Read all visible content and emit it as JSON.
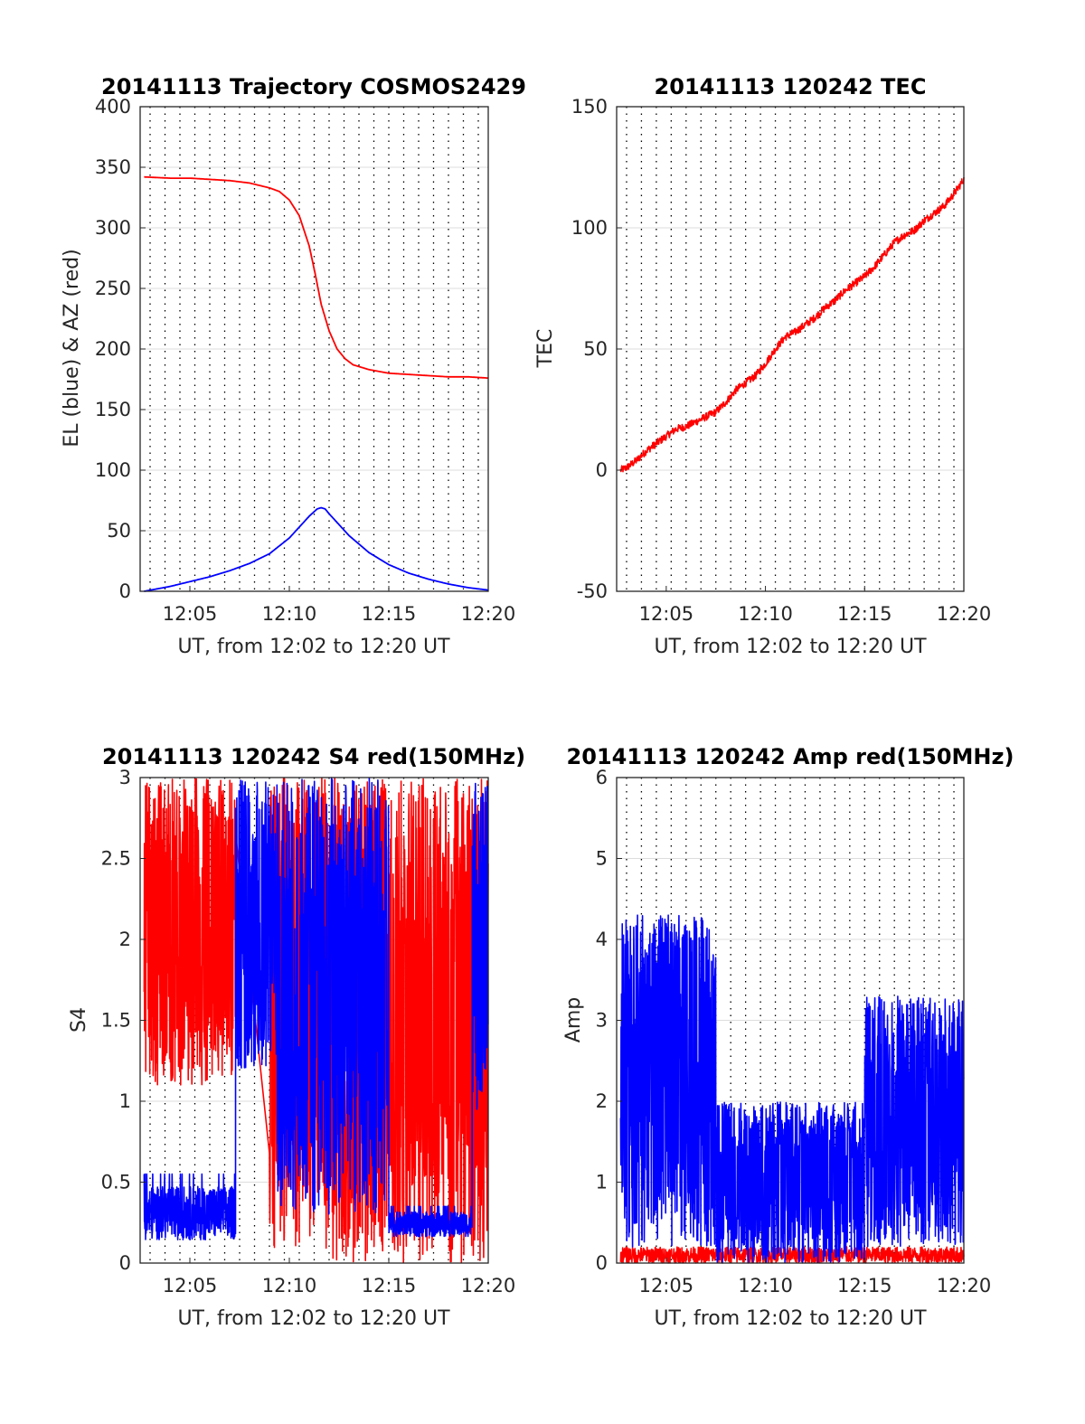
{
  "colors": {
    "red": "#ff0000",
    "blue": "#0000ff",
    "grid_dotted": "#000000",
    "grid_horizontal": "#dddddd"
  },
  "chart_data": [
    {
      "type": "line",
      "title": "20141113 Trajectory COSMOS2429",
      "xlabel": "UT, from 12:02 to 12:20 UT",
      "ylabel": "EL (blue) & AZ (red)",
      "xlim": [
        "12:02:30",
        "12:20:00"
      ],
      "ylim": [
        0,
        400
      ],
      "xticks": [
        "12:05",
        "12:10",
        "12:15",
        "12:20"
      ],
      "yticks": [
        "0",
        "50",
        "100",
        "150",
        "200",
        "250",
        "300",
        "350",
        "400"
      ],
      "grid": "dotted vertical every 45 s, light horizontal at y ticks",
      "series": [
        {
          "color": "red",
          "x_minutes": [
            2.7,
            4,
            5,
            6,
            7,
            8,
            9,
            9.5,
            10,
            10.5,
            11,
            11.3,
            11.6,
            12,
            12.4,
            12.8,
            13.2,
            14,
            15,
            16,
            17,
            18,
            19,
            20
          ],
          "y": [
            342,
            341,
            341,
            340,
            339,
            337,
            333,
            330,
            323,
            310,
            285,
            262,
            237,
            215,
            200,
            192,
            187,
            183,
            180,
            179,
            178,
            177,
            177,
            176
          ]
        },
        {
          "color": "blue",
          "x_minutes": [
            2.7,
            4,
            5,
            6,
            7,
            8,
            9,
            10,
            10.5,
            11,
            11.4,
            11.6,
            11.8,
            12,
            12.5,
            13,
            14,
            15,
            16,
            17,
            18,
            19,
            20
          ],
          "y": [
            0,
            4,
            8,
            12,
            17,
            23,
            31,
            44,
            53,
            62,
            68,
            69,
            68,
            64,
            55,
            46,
            32,
            22,
            15,
            10,
            6,
            3,
            1
          ]
        }
      ]
    },
    {
      "type": "line",
      "title": "20141113 120242 TEC",
      "xlabel": "UT, from 12:02 to 12:20 UT",
      "ylabel": "TEC",
      "xlim": [
        "12:02:30",
        "12:20:00"
      ],
      "ylim": [
        -50,
        150
      ],
      "xticks": [
        "12:05",
        "12:10",
        "12:15",
        "12:20"
      ],
      "yticks": [
        "-50",
        "0",
        "50",
        "100",
        "150"
      ],
      "series": [
        {
          "color": "red",
          "x_minutes": [
            2.7,
            3,
            3.5,
            4,
            4.5,
            5,
            5.5,
            6,
            6.5,
            7,
            7.5,
            8,
            8.5,
            9,
            9.5,
            10,
            10.5,
            11,
            11.5,
            12,
            12.5,
            13,
            13.5,
            14,
            14.5,
            15,
            15.5,
            16,
            16.5,
            17,
            17.5,
            18,
            18.5,
            19,
            19.5,
            20
          ],
          "y": [
            0,
            1,
            4,
            8,
            11,
            14,
            17,
            18,
            20,
            22,
            24,
            28,
            33,
            36,
            39,
            44,
            50,
            55,
            57,
            60,
            63,
            67,
            70,
            74,
            77,
            80,
            84,
            89,
            94,
            97,
            99,
            103,
            106,
            109,
            114,
            120
          ]
        }
      ]
    },
    {
      "type": "line",
      "title": "20141113 120242 S4 red(150MHz)",
      "xlabel": "UT, from 12:02 to 12:20 UT",
      "ylabel": "S4",
      "xlim": [
        "12:02:30",
        "12:20:00"
      ],
      "ylim": [
        0,
        3
      ],
      "xticks": [
        "12:05",
        "12:10",
        "12:15",
        "12:20"
      ],
      "yticks": [
        "0",
        "0.5",
        "1",
        "1.5",
        "2",
        "2.5",
        "3"
      ],
      "series": [
        {
          "color": "red",
          "note_segments": [
            {
              "x_range": [
                2.7,
                7.3
              ],
              "y_range": [
                1.1,
                3.0
              ]
            },
            {
              "x_range": [
                9.0,
                10.6
              ],
              "y_range": [
                0.0,
                3.0
              ]
            },
            {
              "x_range": [
                10.6,
                20.0
              ],
              "y_range": [
                0.0,
                3.0
              ]
            }
          ]
        },
        {
          "color": "blue",
          "note_segments": [
            {
              "x_range": [
                2.7,
                7.3
              ],
              "y_range": [
                0.18,
                0.55
              ]
            },
            {
              "x_range": [
                7.3,
                9.4
              ],
              "y_range": [
                1.2,
                3.0
              ]
            },
            {
              "x_range": [
                9.4,
                15.0
              ],
              "y_range": [
                0.3,
                3.0
              ]
            },
            {
              "x_range": [
                15.0,
                19.2
              ],
              "y_range": [
                0.18,
                0.35
              ]
            },
            {
              "x_range": [
                19.2,
                20.0
              ],
              "y_range": [
                0.9,
                3.0
              ]
            }
          ]
        }
      ]
    },
    {
      "type": "line",
      "title": "20141113 120242 Amp red(150MHz)",
      "xlabel": "UT, from 12:02 to 12:20 UT",
      "ylabel": "Amp",
      "xlim": [
        "12:02:30",
        "12:20:00"
      ],
      "ylim": [
        0,
        6
      ],
      "xticks": [
        "12:05",
        "12:10",
        "12:15",
        "12:20"
      ],
      "yticks": [
        "0",
        "1",
        "2",
        "3",
        "4",
        "5",
        "6"
      ],
      "series": [
        {
          "color": "red",
          "y_range": [
            0,
            0.2
          ]
        },
        {
          "color": "blue",
          "note_segments": [
            {
              "x_range": [
                2.7,
                7.5
              ],
              "y_range": [
                0.2,
                4.3
              ]
            },
            {
              "x_range": [
                7.5,
                15.0
              ],
              "y_range": [
                0.0,
                2.0
              ]
            },
            {
              "x_range": [
                15.0,
                20.0
              ],
              "y_range": [
                0.2,
                3.3
              ]
            }
          ]
        }
      ]
    }
  ]
}
